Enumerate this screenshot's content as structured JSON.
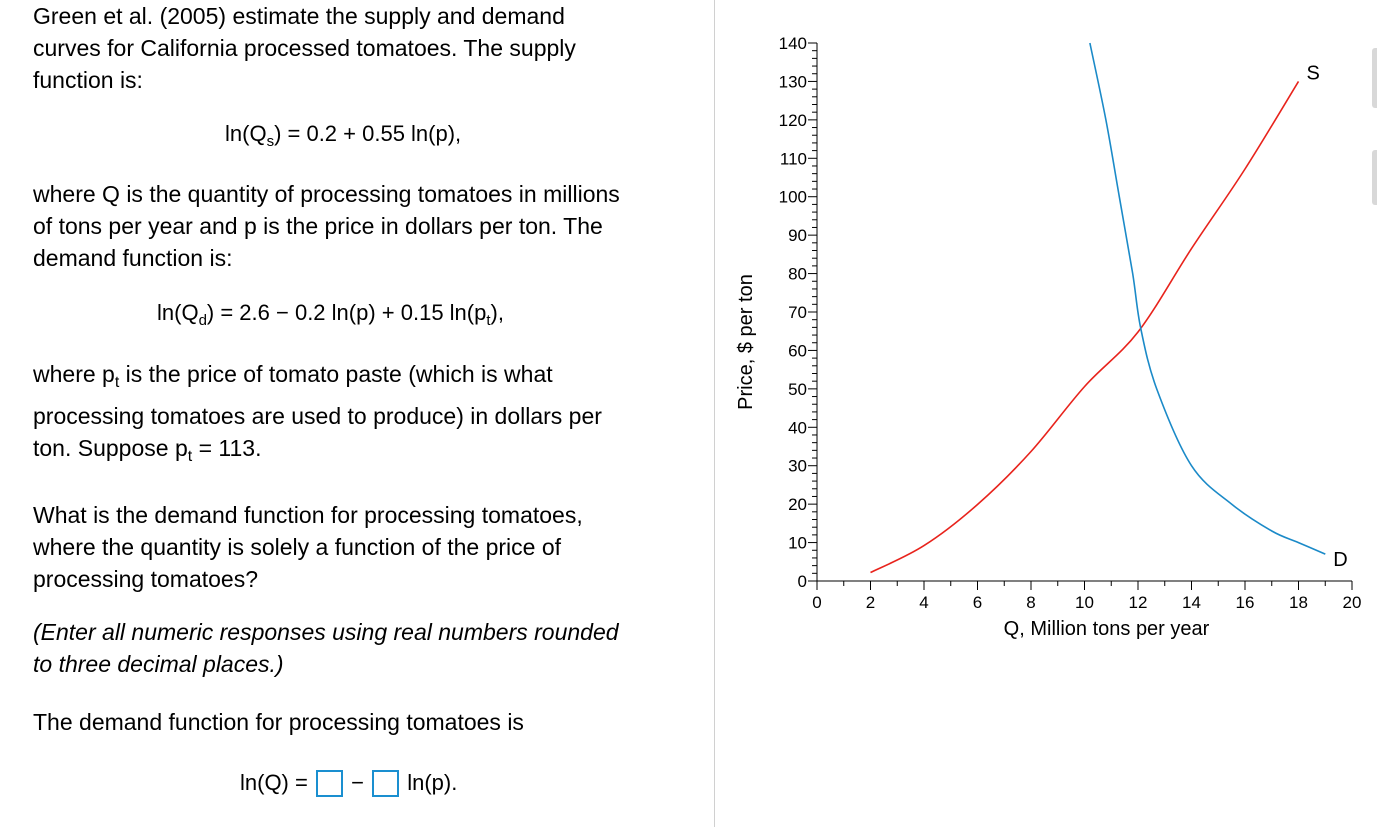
{
  "question": {
    "intro_lines": [
      "Green et al. (2005) estimate the supply and demand",
      "curves for California processed tomatoes.  The supply",
      "function is:"
    ],
    "supply_eq": {
      "lhs": "ln(Q",
      "sub": "s",
      "rhs": ") = 0.2 + 0.55 ln(p),"
    },
    "where_q_lines": [
      "where Q is the quantity of processing tomatoes in millions",
      "of tons per year and p is the price in dollars per ton.  The",
      "demand function is:"
    ],
    "demand_eq": {
      "lhs": "ln(Q",
      "sub": "d",
      "mid": ") = 2.6 − 0.2 ln(p) + 0.15 ln(p",
      "sub2": "t",
      "end": "),"
    },
    "where_pt": {
      "a": "where p",
      "sub": "t",
      "b": " is the price of tomato paste (which is what"
    },
    "where_pt_line2": "processing tomatoes are used to produce) in dollars per",
    "suppose": {
      "a": "ton.  Suppose p",
      "sub": "t",
      "b": " = 113."
    },
    "ask_lines": [
      "What is the demand function for processing tomatoes,",
      "where the quantity is solely a function of the price of",
      "processing tomatoes?"
    ],
    "instruction_lines": [
      "(Enter all numeric responses using real numbers rounded",
      "to three decimal places.)"
    ],
    "answer_label": "The demand function for processing tomatoes is",
    "answer": {
      "lhs": "ln(Q) =",
      "op": "−",
      "tail": "ln(p).",
      "box1_value": "",
      "box2_value": ""
    }
  },
  "chart_data": {
    "type": "line",
    "xlabel": "Q, Million tons per year",
    "ylabel": "Price, $ per ton",
    "xlim": [
      0,
      20
    ],
    "ylim": [
      0,
      140
    ],
    "x_ticks": [
      0,
      2,
      4,
      6,
      8,
      10,
      12,
      14,
      16,
      18,
      20
    ],
    "y_ticks": [
      0,
      10,
      20,
      30,
      40,
      50,
      60,
      70,
      80,
      90,
      100,
      110,
      120,
      130,
      140
    ],
    "series": [
      {
        "name": "S",
        "color": "#e8231c",
        "points": [
          [
            2,
            2.2
          ],
          [
            4,
            9.2
          ],
          [
            6,
            19.9
          ],
          [
            8,
            33.7
          ],
          [
            10,
            50.6
          ],
          [
            12,
            64.8
          ],
          [
            14,
            86.5
          ],
          [
            16,
            107.2
          ],
          [
            18,
            130
          ]
        ]
      },
      {
        "name": "D",
        "color": "#1b8ac8",
        "points": [
          [
            10.2,
            140
          ],
          [
            10.8,
            120
          ],
          [
            11.3,
            100
          ],
          [
            11.8,
            80
          ],
          [
            12.1,
            65.8
          ],
          [
            12.7,
            50
          ],
          [
            14,
            30
          ],
          [
            15.5,
            20
          ],
          [
            17,
            13
          ],
          [
            18,
            10
          ],
          [
            19,
            7
          ]
        ]
      }
    ]
  }
}
